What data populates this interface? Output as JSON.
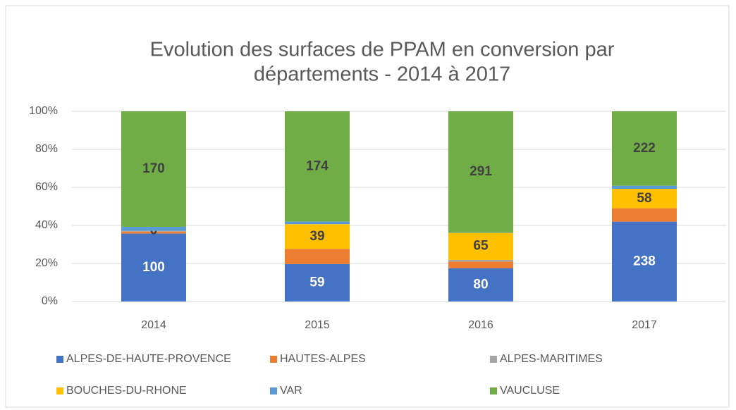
{
  "chart_data": {
    "type": "bar",
    "stacking": "percent",
    "title": [
      "Evolution des surfaces de PPAM en conversion par",
      "départements - 2014 à 2017"
    ],
    "categories": [
      "2014",
      "2015",
      "2016",
      "2017"
    ],
    "series": [
      {
        "name": "ALPES-DE-HAUTE-PROVENCE",
        "color": "#4472c4",
        "values": [
          100,
          59,
          80,
          238
        ],
        "show_labels": true,
        "label_color": "#ffffff"
      },
      {
        "name": "HAUTES-ALPES",
        "color": "#ed7d31",
        "values": [
          3,
          24,
          16,
          40
        ],
        "show_labels": false
      },
      {
        "name": "ALPES-MARITIMES",
        "color": "#a5a5a5",
        "values": [
          1,
          0,
          4,
          0
        ],
        "show_labels": false
      },
      {
        "name": "BOUCHES-DU-RHONE",
        "color": "#ffc000",
        "values": [
          0,
          39,
          65,
          58
        ],
        "show_labels": true,
        "label_color": "#404040"
      },
      {
        "name": "VAR",
        "color": "#5b9bd5",
        "values": [
          6,
          4,
          1,
          9
        ],
        "show_labels": false
      },
      {
        "name": "VAUCLUSE",
        "color": "#70ad47",
        "values": [
          170,
          174,
          291,
          222
        ],
        "show_labels": true,
        "label_color": "#404040"
      }
    ],
    "ylim": [
      0,
      100
    ],
    "yticks": [
      {
        "value": 0,
        "label": "0%"
      },
      {
        "value": 20,
        "label": "20%"
      },
      {
        "value": 40,
        "label": "40%"
      },
      {
        "value": 60,
        "label": "60%"
      },
      {
        "value": 80,
        "label": "80%"
      },
      {
        "value": 100,
        "label": "100%"
      }
    ],
    "grid": true,
    "legend": "bottom"
  }
}
